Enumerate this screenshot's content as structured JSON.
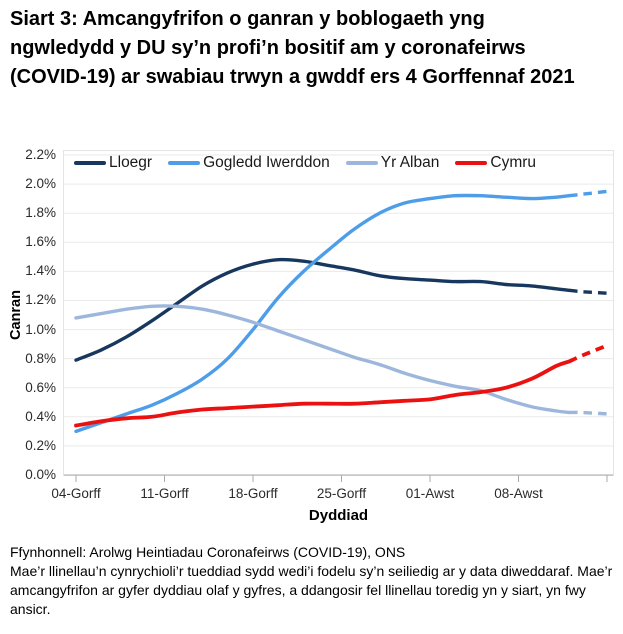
{
  "title": "Siart 3: Amcangyfrifon o ganran y boblogaeth yng ngwledydd y DU sy’n profi’n bositif am y coronafeirws (COVID-19) ar swabiau trwyn a gwddf ers 4 Gorffennaf 2021",
  "footer": {
    "source": "Ffynhonnell: Arolwg Heintiadau Coronafeirws (COVID-19), ONS",
    "note": "Mae’r llinellau’n cynrychioli’r tueddiad sydd wedi’i fodelu sy’n seiliedig ar y data diweddaraf. Mae’r amcangyfrifon ar gyfer dyddiau olaf y gyfres, a ddangosir fel llinellau toredig yn y siart, yn fwy ansicr."
  },
  "chart_data": {
    "type": "line",
    "title": "Siart 3: Amcangyfrifon o ganran y boblogaeth yng ngwledydd y DU sy’n profi’n bositif am y coronafeirws (COVID-19) ar swabiau trwyn a gwddf ers 4 Gorffennaf 2021",
    "xlabel": "Dyddiad",
    "ylabel": "Canran",
    "ylim": [
      0,
      2.2
    ],
    "y_tick_step": 0.2,
    "y_tick_labels": [
      "0.0%",
      "0.2%",
      "0.4%",
      "0.6%",
      "0.8%",
      "1.0%",
      "1.2%",
      "1.4%",
      "1.6%",
      "1.8%",
      "2.0%",
      "2.2%"
    ],
    "x_tick_days": [
      0,
      7,
      14,
      21,
      28,
      35,
      42
    ],
    "x_tick_labels": [
      "04-Gorff",
      "11-Gorff",
      "18-Gorff",
      "25-Gorff",
      "01-Awst",
      "08-Awst",
      ""
    ],
    "x_range_days": [
      0,
      42.5
    ],
    "grid": "horizontal",
    "legend_position": "top-left",
    "dashed_note": "llinellau toredig = amcangyfrifon mwy ansicr ar gyfer dyddiau olaf y gyfres",
    "days": [
      0,
      2,
      4,
      6,
      8,
      10,
      12,
      14,
      16,
      18,
      20,
      22,
      24,
      26,
      28,
      30,
      32,
      34,
      36,
      38,
      39,
      40,
      42
    ],
    "series": [
      {
        "name": "Lloegr",
        "color": "#17375E",
        "width": 3.4,
        "dashed_from_day": 39,
        "values": [
          0.79,
          0.86,
          0.95,
          1.06,
          1.18,
          1.3,
          1.39,
          1.45,
          1.48,
          1.47,
          1.44,
          1.41,
          1.37,
          1.35,
          1.34,
          1.33,
          1.33,
          1.31,
          1.3,
          1.28,
          1.27,
          1.26,
          1.25
        ]
      },
      {
        "name": "Gogledd Iwerddon",
        "color": "#4D9DE8",
        "width": 3.4,
        "dashed_from_day": 39,
        "values": [
          0.3,
          0.36,
          0.42,
          0.48,
          0.56,
          0.66,
          0.8,
          1.0,
          1.22,
          1.4,
          1.55,
          1.69,
          1.8,
          1.87,
          1.9,
          1.92,
          1.92,
          1.91,
          1.9,
          1.91,
          1.92,
          1.93,
          1.95
        ]
      },
      {
        "name": "Yr Alban",
        "color": "#9DB7DC",
        "width": 3.4,
        "dashed_from_day": 39,
        "values": [
          1.08,
          1.11,
          1.14,
          1.16,
          1.16,
          1.14,
          1.1,
          1.05,
          0.99,
          0.93,
          0.87,
          0.81,
          0.76,
          0.7,
          0.65,
          0.61,
          0.58,
          0.52,
          0.47,
          0.44,
          0.43,
          0.43,
          0.42
        ]
      },
      {
        "name": "Cymru",
        "color": "#EB1111",
        "width": 3.8,
        "dashed_from_day": 39,
        "values": [
          0.34,
          0.37,
          0.39,
          0.4,
          0.43,
          0.45,
          0.46,
          0.47,
          0.48,
          0.49,
          0.49,
          0.49,
          0.5,
          0.51,
          0.52,
          0.55,
          0.57,
          0.6,
          0.66,
          0.75,
          0.78,
          0.82,
          0.89
        ]
      }
    ]
  }
}
